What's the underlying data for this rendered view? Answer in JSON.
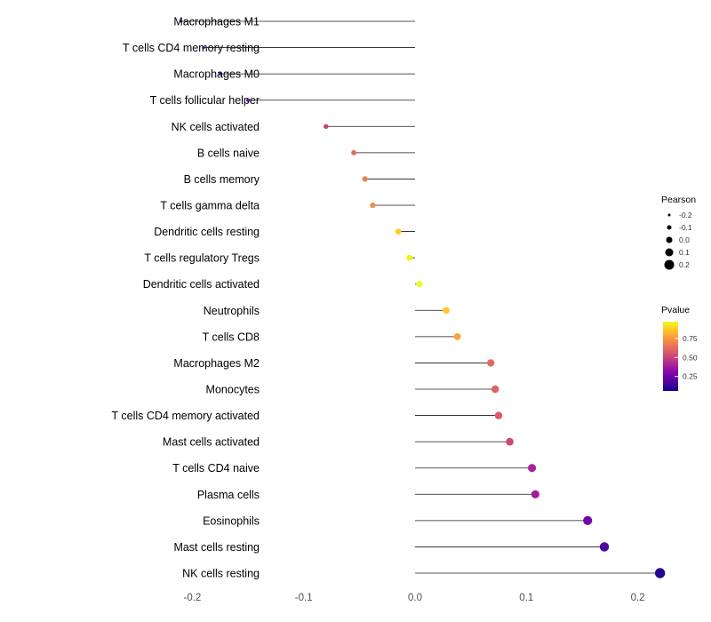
{
  "chart_data": {
    "type": "lollipop",
    "orientation": "horizontal",
    "title": "",
    "xlabel": "",
    "ylabel": "",
    "xlim": [
      -0.25,
      0.25
    ],
    "grid": false,
    "x_ticks": [
      -0.2,
      -0.1,
      0.0,
      0.1,
      0.2
    ],
    "x_tick_labels": [
      "-0.2",
      "-0.1",
      "0.0",
      "0.1",
      "0.2"
    ],
    "points": [
      {
        "label": "Macrophages M1",
        "pearson": -0.21,
        "pvalue": 0.06
      },
      {
        "label": "T cells CD4 memory resting",
        "pearson": -0.19,
        "pvalue": 0.12
      },
      {
        "label": "Macrophages M0",
        "pearson": -0.175,
        "pvalue": 0.16
      },
      {
        "label": "T cells follicular helper",
        "pearson": -0.15,
        "pvalue": 0.27
      },
      {
        "label": "NK cells activated",
        "pearson": -0.08,
        "pvalue": 0.5
      },
      {
        "label": "B cells naive",
        "pearson": -0.055,
        "pvalue": 0.63
      },
      {
        "label": "B cells memory",
        "pearson": -0.045,
        "pvalue": 0.68
      },
      {
        "label": "T cells gamma delta",
        "pearson": -0.038,
        "pvalue": 0.72
      },
      {
        "label": "Dendritic cells resting",
        "pearson": -0.015,
        "pvalue": 0.88
      },
      {
        "label": "T cells regulatory  Tregs",
        "pearson": -0.005,
        "pvalue": 0.95
      },
      {
        "label": "Dendritic cells activated",
        "pearson": 0.004,
        "pvalue": 0.97
      },
      {
        "label": "Neutrophils",
        "pearson": 0.028,
        "pvalue": 0.87
      },
      {
        "label": "T cells CD8",
        "pearson": 0.038,
        "pvalue": 0.78
      },
      {
        "label": "Macrophages M2",
        "pearson": 0.068,
        "pvalue": 0.62
      },
      {
        "label": "Monocytes",
        "pearson": 0.072,
        "pvalue": 0.6
      },
      {
        "label": "T cells CD4 memory activated",
        "pearson": 0.075,
        "pvalue": 0.58
      },
      {
        "label": "Mast cells activated",
        "pearson": 0.085,
        "pvalue": 0.52
      },
      {
        "label": "T cells CD4 naive",
        "pearson": 0.105,
        "pvalue": 0.4
      },
      {
        "label": "Plasma cells",
        "pearson": 0.108,
        "pvalue": 0.38
      },
      {
        "label": "Eosinophils",
        "pearson": 0.155,
        "pvalue": 0.26
      },
      {
        "label": "Mast cells resting",
        "pearson": 0.17,
        "pvalue": 0.18
      },
      {
        "label": "NK cells resting",
        "pearson": 0.22,
        "pvalue": 0.1
      }
    ],
    "legend": {
      "size": {
        "title": "Pearson",
        "ticks": [
          -0.2,
          -0.1,
          0.0,
          0.1,
          0.2
        ],
        "tick_labels": [
          "-0.2",
          "-0.1",
          "0.0",
          "0.1",
          "0.2"
        ]
      },
      "color": {
        "title": "Pvalue",
        "ticks": [
          0.75,
          0.5,
          0.25
        ],
        "tick_labels": [
          "0.75",
          "0.50",
          "0.25"
        ],
        "palette": "plasma"
      }
    },
    "color_scale": {
      "name": "plasma",
      "stops": [
        "#0d0887",
        "#41049d",
        "#6a00a8",
        "#8f0da4",
        "#b12a90",
        "#cc4778",
        "#e16462",
        "#f2844b",
        "#fca636",
        "#fcce25",
        "#f0f921"
      ]
    }
  },
  "colors": {
    "background": "#ffffff",
    "stem": "#1a1a1a",
    "label_text": "#000000",
    "axis_text": "#4d4d4d",
    "legend_dot": "#000000"
  }
}
